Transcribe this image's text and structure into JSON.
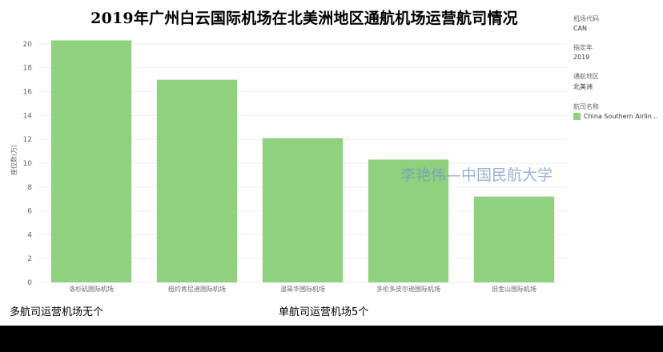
{
  "title": "2019年广州白云国际机场在北美洲地区通航机场运营航司情况",
  "side_panel": {
    "airport_code_label": "机场代码",
    "airport_code_value": "CAN",
    "year_label": "指定年",
    "year_value": "2019",
    "region_label": "通航地区",
    "region_value": "北美洲",
    "airline_label": "航司名称",
    "airline_value": "China Southern Airlin..."
  },
  "watermark": "李艳伟—中国民航大学",
  "notes": {
    "left": "多航司运营机场无个",
    "right": "单航司运营机场5个"
  },
  "colors": {
    "bar": "#8fd17e",
    "grid": "#eeeeee",
    "axis_text": "#666666"
  },
  "chart_data": {
    "type": "bar",
    "categories": [
      "洛杉矶国际机场",
      "纽约肯尼迪国际机场",
      "温哥华国际机场",
      "多伦多皮尔逊国际机场",
      "旧金山国际机场"
    ],
    "values": [
      20.3,
      17.0,
      12.1,
      10.3,
      7.2
    ],
    "ylabel": "座位数(万)",
    "ylim": [
      0,
      21
    ],
    "yticks": [
      0,
      2,
      4,
      6,
      8,
      10,
      12,
      14,
      16,
      18,
      20
    ],
    "grid": true,
    "legend": "right"
  }
}
